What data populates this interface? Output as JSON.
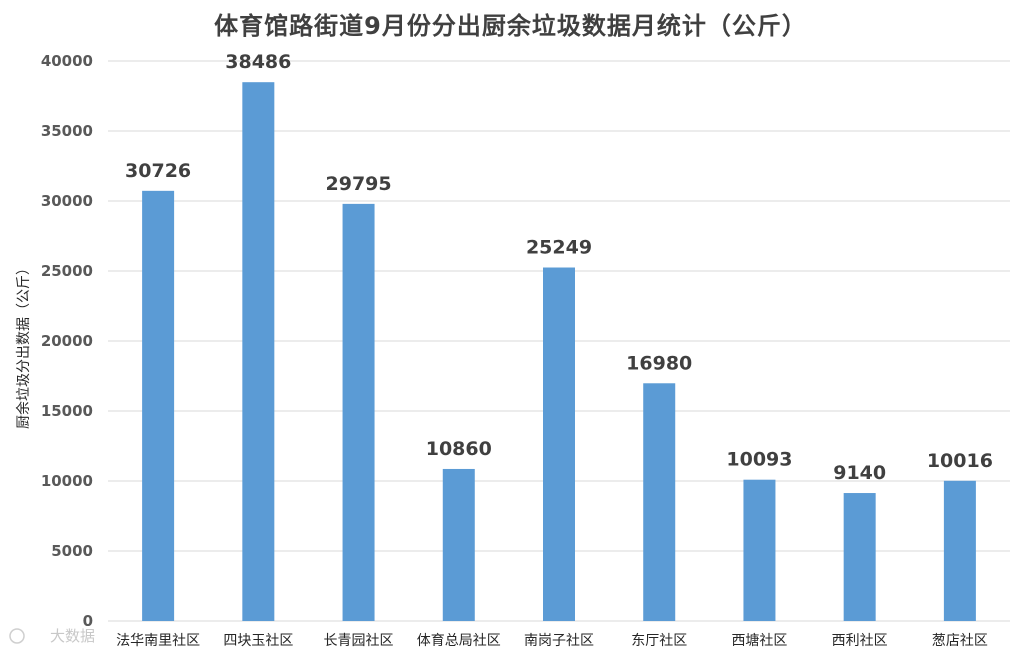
{
  "chart_data": {
    "type": "bar",
    "title": "体育馆路街道9月份分出厨余垃圾数据月统计（公斤）",
    "xlabel": "",
    "ylabel": "厨余垃圾分出数据（公斤）",
    "categories": [
      "法华南里社区",
      "四块玉社区",
      "长青园社区",
      "体育总局社区",
      "南岗子社区",
      "东厅社区",
      "西塘社区",
      "西利社区",
      "葱店社区"
    ],
    "values": [
      30726,
      38486,
      29795,
      10860,
      25249,
      16980,
      10093,
      9140,
      10016
    ],
    "ylim": [
      0,
      40000
    ],
    "yticks": [
      0,
      5000,
      10000,
      15000,
      20000,
      25000,
      30000,
      35000,
      40000
    ],
    "grid": true,
    "bar_color": "#5b9bd5",
    "grid_color": "#d9d9d9"
  },
  "watermark": "大数据"
}
